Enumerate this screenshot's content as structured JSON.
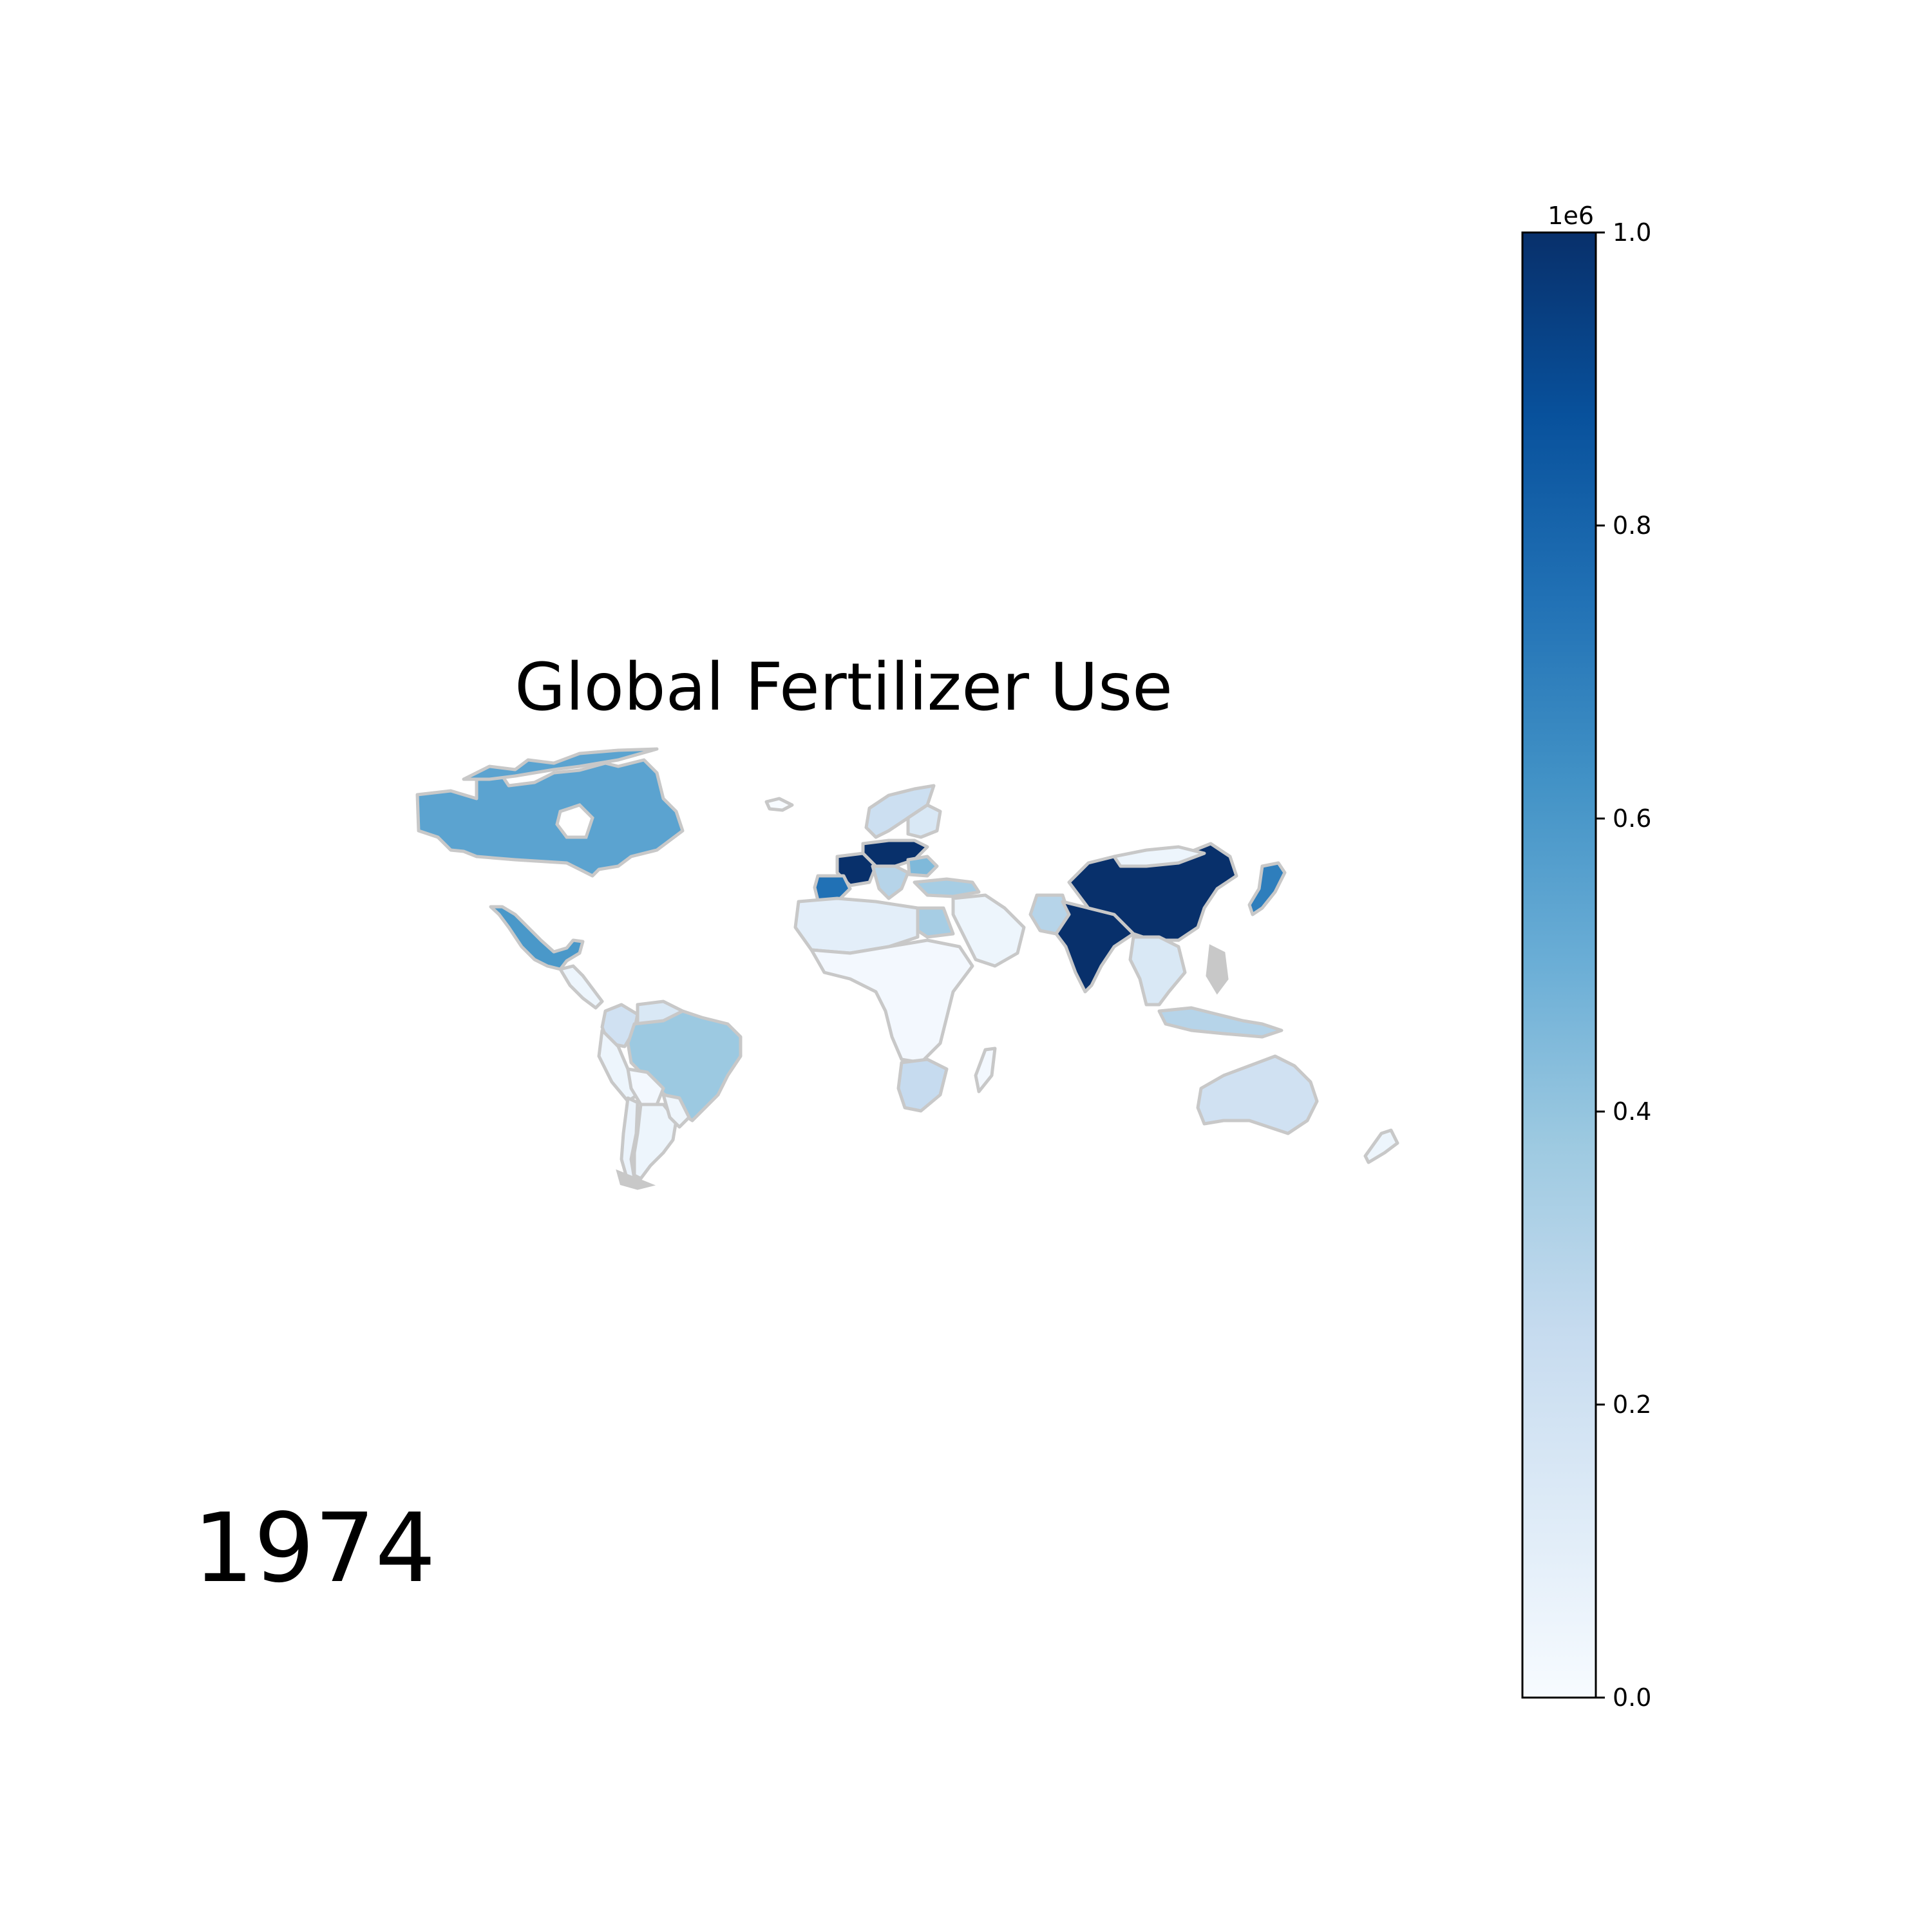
{
  "title": "Global Fertilizer Use",
  "year": "1974",
  "colorbar": {
    "colormap": "Blues",
    "offset_label": "1e6",
    "min": 0.0,
    "max": 1.0,
    "ticks": [
      {
        "value": 0.0,
        "label": "0.0"
      },
      {
        "value": 0.2,
        "label": "0.2"
      },
      {
        "value": 0.4,
        "label": "0.4"
      },
      {
        "value": 0.6,
        "label": "0.6"
      },
      {
        "value": 0.8,
        "label": "0.8"
      },
      {
        "value": 1.0,
        "label": "1.0"
      }
    ]
  },
  "map": {
    "type": "choropleth",
    "border_color": "#c8c8c8",
    "regions": [
      {
        "name": "Canada",
        "value": 0.55
      },
      {
        "name": "Greenland",
        "value": 0.0
      },
      {
        "name": "United States",
        "value": null
      },
      {
        "name": "Mexico",
        "value": 0.6
      },
      {
        "name": "Central America",
        "value": 0.05
      },
      {
        "name": "Colombia",
        "value": 0.2
      },
      {
        "name": "Venezuela",
        "value": 0.15
      },
      {
        "name": "Peru",
        "value": 0.05
      },
      {
        "name": "Brazil",
        "value": 0.38
      },
      {
        "name": "Bolivia",
        "value": 0.02
      },
      {
        "name": "Argentina",
        "value": 0.05
      },
      {
        "name": "Chile",
        "value": 0.06
      },
      {
        "name": "Uruguay / Paraguay",
        "value": 0.04
      },
      {
        "name": "Scandinavia",
        "value": 0.22
      },
      {
        "name": "Finland",
        "value": 0.15
      },
      {
        "name": "Germany / Poland",
        "value": 1.0
      },
      {
        "name": "France",
        "value": 1.0
      },
      {
        "name": "Spain",
        "value": 0.75
      },
      {
        "name": "Italy / Central Europe",
        "value": 0.3
      },
      {
        "name": "Romania",
        "value": 0.45
      },
      {
        "name": "Turkey",
        "value": 0.35
      },
      {
        "name": "Egypt",
        "value": 0.35
      },
      {
        "name": "North Africa",
        "value": 0.1
      },
      {
        "name": "Sub-Saharan Africa",
        "value": 0.02
      },
      {
        "name": "South Africa",
        "value": 0.25
      },
      {
        "name": "Middle East",
        "value": 0.05
      },
      {
        "name": "Pakistan",
        "value": 0.3
      },
      {
        "name": "India",
        "value": 1.0
      },
      {
        "name": "China",
        "value": 1.0
      },
      {
        "name": "Mongolia",
        "value": 0.05
      },
      {
        "name": "Japan",
        "value": 0.7
      },
      {
        "name": "Southeast Asia",
        "value": 0.15
      },
      {
        "name": "Indonesia",
        "value": 0.3
      },
      {
        "name": "Australia",
        "value": 0.2
      },
      {
        "name": "New Zealand",
        "value": 0.05
      }
    ]
  }
}
